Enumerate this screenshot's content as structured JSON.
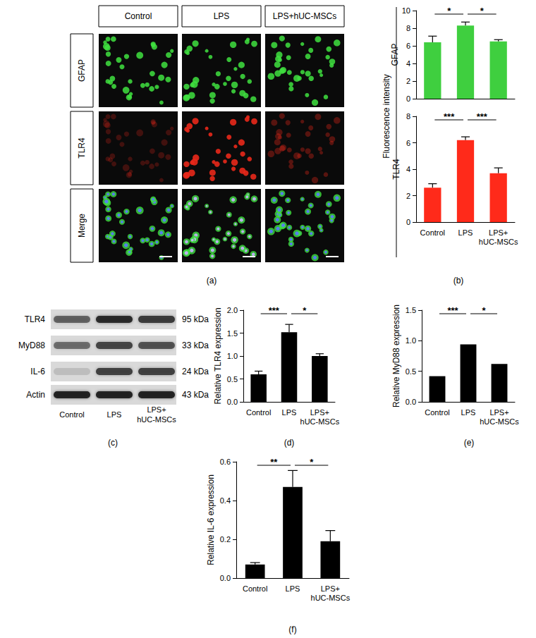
{
  "panel_labels": [
    "(a)",
    "(b)",
    "(c)",
    "(d)",
    "(e)",
    "(f)"
  ],
  "images": {
    "columns": [
      "Control",
      "LPS",
      "LPS+hUC-MSCs"
    ],
    "rows": [
      "GFAP",
      "TLR4",
      "Merge"
    ]
  },
  "blot": {
    "bands": [
      {
        "label": "TLR4",
        "size": "95 kDa"
      },
      {
        "label": "MyD88",
        "size": "33 kDa"
      },
      {
        "label": "IL-6",
        "size": "24 kDa"
      },
      {
        "label": "Actin",
        "size": "43 kDa"
      }
    ],
    "lanes": [
      "Control",
      "LPS",
      "LPS+\nhUC-MSCs"
    ]
  },
  "fluorescence_axis_label": "Fluorescence intensity",
  "chart_data": [
    {
      "type": "bar",
      "y_label": "GFAP",
      "categories": [
        "Control",
        "LPS",
        "LPS+\nhUC-MSCs"
      ],
      "values": [
        6.4,
        8.3,
        6.5
      ],
      "errors": [
        0.7,
        0.4,
        0.2
      ],
      "color": "#3fcf3f",
      "ylim": [
        0,
        10
      ],
      "yticks": [
        0,
        2,
        4,
        6,
        8,
        10
      ],
      "grid": false,
      "tick_labels": "y",
      "significance": [
        {
          "from": 0,
          "to": 1,
          "label": "*"
        },
        {
          "from": 1,
          "to": 2,
          "label": "*"
        }
      ]
    },
    {
      "type": "bar",
      "y_label": "TLR4",
      "categories": [
        "Control",
        "LPS",
        "LPS+\nhUC-MSCs"
      ],
      "values": [
        2.6,
        6.2,
        3.7
      ],
      "errors": [
        0.3,
        0.25,
        0.4
      ],
      "color": "#ff2a1a",
      "ylim": [
        0,
        8
      ],
      "yticks": [
        0,
        2,
        4,
        6,
        8
      ],
      "grid": false,
      "significance": [
        {
          "from": 0,
          "to": 1,
          "label": "***"
        },
        {
          "from": 1,
          "to": 2,
          "label": "***"
        }
      ]
    },
    {
      "type": "bar",
      "y_label": "Relative TLR4 expression",
      "categories": [
        "Control",
        "LPS",
        "LPS+\nhUC-MSCs"
      ],
      "values": [
        0.6,
        1.52,
        1.0
      ],
      "errors": [
        0.07,
        0.17,
        0.05
      ],
      "color": "#000000",
      "ylim": [
        0,
        2
      ],
      "yticks": [
        {
          "value": 0,
          "label": "0.0"
        },
        {
          "value": 0.5,
          "label": "0.5"
        },
        {
          "value": 1,
          "label": "1.0"
        },
        {
          "value": 1.5,
          "label": "1.5"
        },
        {
          "value": 2,
          "label": "2.0"
        }
      ],
      "grid": false,
      "significance": [
        {
          "from": 0,
          "to": 1,
          "label": "***"
        },
        {
          "from": 1,
          "to": 2,
          "label": "*"
        }
      ]
    },
    {
      "type": "bar",
      "y_label": "Relative MyD88 expression",
      "categories": [
        "Control",
        "LPS",
        "LPS+\nhUC-MSCs"
      ],
      "values": [
        0.42,
        0.94,
        0.62
      ],
      "color": "#000000",
      "ylim": [
        0,
        1.5
      ],
      "yticks": [
        {
          "value": 0,
          "label": "0.0"
        },
        {
          "value": 0.5,
          "label": "0.5"
        },
        {
          "value": 1,
          "label": "1.0"
        },
        {
          "value": 1.5,
          "label": "1.5"
        }
      ],
      "grid": false,
      "significance": [
        {
          "from": 0,
          "to": 1,
          "label": "***"
        },
        {
          "from": 1,
          "to": 2,
          "label": "*"
        }
      ]
    },
    {
      "type": "bar",
      "y_label": "Relative IL-6 expression",
      "categories": [
        "Control",
        "LPS",
        "LPS+\nhUC-MSCs"
      ],
      "values": [
        0.07,
        0.47,
        0.19
      ],
      "errors": [
        0.01,
        0.085,
        0.055
      ],
      "color": "#000000",
      "ylim": [
        0,
        0.6
      ],
      "yticks": [
        {
          "value": 0,
          "label": "0.0"
        },
        {
          "value": 0.2,
          "label": "0.2"
        },
        {
          "value": 0.4,
          "label": "0.4"
        },
        {
          "value": 0.6,
          "label": "0.6"
        }
      ],
      "grid": false,
      "significance": [
        {
          "from": 0,
          "to": 1,
          "label": "**"
        },
        {
          "from": 1,
          "to": 2,
          "label": "*"
        }
      ]
    }
  ]
}
